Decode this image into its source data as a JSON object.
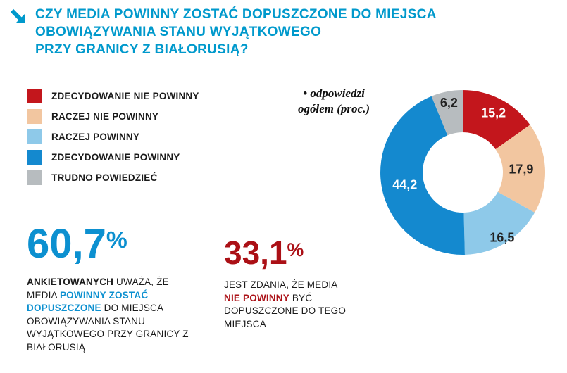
{
  "header": {
    "icon": "down-right-arrow",
    "accent_color": "#0099cc"
  },
  "title": {
    "lines": [
      "CZY MEDIA POWINNY ZOSTAĆ DOPUSZCZONE DO MIEJSCA",
      "OBOWIĄZYWANIA STANU WYJĄTKOWEGO",
      "PRZY GRANICY Z BIAŁORUSIĄ?"
    ]
  },
  "chart_data": {
    "type": "pie",
    "subtype": "donut",
    "title": "CZY MEDIA POWINNY ZOSTAĆ DOPUSZCZONE DO MIEJSCA OBOWIĄZYWANIA STANU WYJĄTKOWEGO PRZY GRANICY Z BIAŁORUSIĄ?",
    "annotation_marker": "•",
    "annotation": "odpowiedzi ogółem (proc.)",
    "categories": [
      "ZDECYDOWANIE NIE POWINNY",
      "RACZEJ NIE POWINNY",
      "RACZEJ POWINNY",
      "ZDECYDOWANIE POWINNY",
      "TRUDNO POWIEDZIEĆ"
    ],
    "values": [
      15.2,
      17.9,
      16.5,
      44.2,
      6.2
    ],
    "display_values": [
      "15,2",
      "17,9",
      "16,5",
      "44,2",
      "6,2"
    ],
    "colors": [
      "#c3161c",
      "#f2c6a0",
      "#8ec9e9",
      "#1489cf",
      "#b7bcbf"
    ],
    "label_colors": [
      "#ffffff",
      "#222222",
      "#222222",
      "#ffffff",
      "#222222"
    ],
    "layout": {
      "start_angle": 0,
      "direction": "clockwise",
      "outer_radius": 117,
      "inner_radius": 57,
      "label_radii": [
        95,
        83,
        108,
        84,
        101
      ],
      "legend_position": "left"
    }
  },
  "stats": {
    "majority": {
      "value": "60,7",
      "unit": "%",
      "segments": [
        "ANKIETOWANYCH",
        " UWAŻA, ŻE MEDIA ",
        "POWINNY ZOSTAĆ DOPUSZCZONE",
        " DO MIEJSCA OBOWIĄZYWANIA STANU WYJĄTKOWEGO PRZY GRANICY Z BIAŁORUSIĄ"
      ]
    },
    "minority": {
      "value": "33,1",
      "unit": "%",
      "segments": [
        "JEST ZDANIA, ŻE MEDIA ",
        "NIE POWINNY",
        " BYĆ DOPUSZCZONE DO TEGO MIEJSCA"
      ]
    }
  }
}
